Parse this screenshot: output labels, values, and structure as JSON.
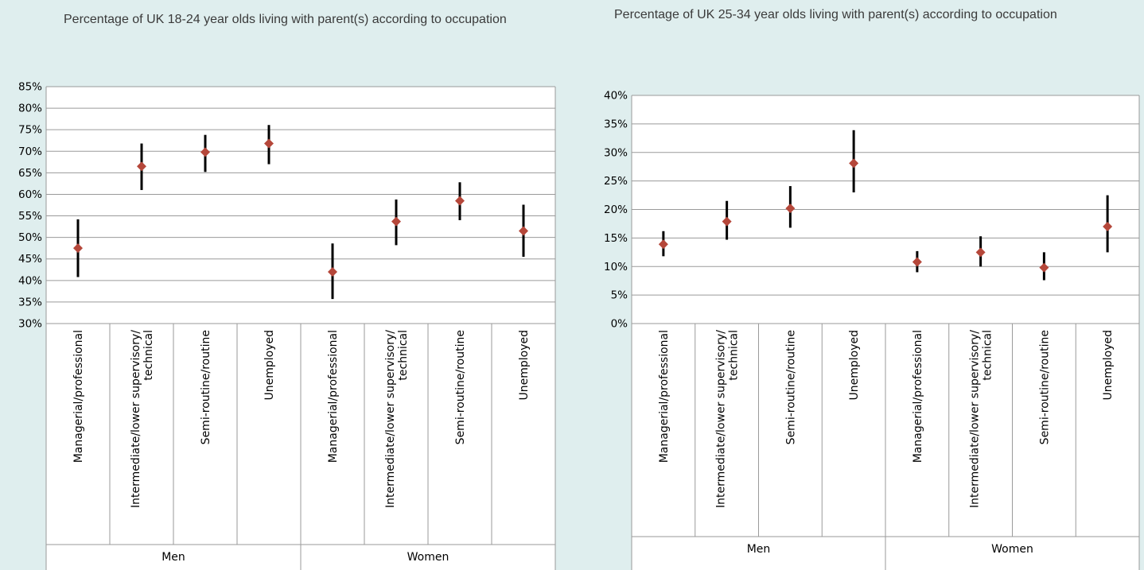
{
  "colors": {
    "background": "#dfeeee",
    "plot_background": "#ffffff",
    "marker": "#b5473a",
    "error_bar": "#000000",
    "grid": "#9a9a9a"
  },
  "chart_data": [
    {
      "type": "scatter",
      "title": "Percentage of UK 18-24 year olds living with parent(s) according to occupation",
      "categories": [
        "Managerial/professional",
        "Intermediate/lower supervisory/ technical",
        "Semi-routine/routine",
        "Unemployed",
        "Managerial/professional",
        "Intermediate/lower supervisory/ technical",
        "Semi-routine/routine",
        "Unemployed"
      ],
      "groups": [
        {
          "name": "Men",
          "span": [
            0,
            3
          ]
        },
        {
          "name": "Women",
          "span": [
            4,
            7
          ]
        }
      ],
      "values": [
        47.5,
        66.5,
        69.8,
        71.8,
        42.0,
        53.7,
        58.5,
        51.5
      ],
      "error_low": [
        40.8,
        61.0,
        65.2,
        67.0,
        35.7,
        48.2,
        54.0,
        45.5
      ],
      "error_high": [
        54.2,
        71.8,
        73.8,
        76.1,
        48.6,
        58.8,
        62.8,
        57.6
      ],
      "ylim": [
        30,
        85
      ],
      "yticks": [
        "30%",
        "35%",
        "40%",
        "45%",
        "50%",
        "55%",
        "60%",
        "65%",
        "70%",
        "75%",
        "80%",
        "85%"
      ],
      "grid": true,
      "legend": "none"
    },
    {
      "type": "scatter",
      "title": "Percentage of UK 25-34 year olds living with parent(s) according to occupation",
      "categories": [
        "Managerial/professional",
        "Intermediate/lower supervisory/ technical",
        "Semi-routine/routine",
        "Unemployed",
        "Managerial/professional",
        "Intermediate/lower supervisory/ technical",
        "Semi-routine/routine",
        "Unemployed"
      ],
      "groups": [
        {
          "name": "Men",
          "span": [
            0,
            3
          ]
        },
        {
          "name": "Women",
          "span": [
            4,
            7
          ]
        }
      ],
      "values": [
        13.9,
        17.9,
        20.2,
        28.1,
        10.8,
        12.5,
        9.8,
        17.0
      ],
      "error_low": [
        11.8,
        14.7,
        16.8,
        23.0,
        9.0,
        10.0,
        7.6,
        12.5
      ],
      "error_high": [
        16.2,
        21.5,
        24.1,
        33.9,
        12.7,
        15.3,
        12.5,
        22.5
      ],
      "ylim": [
        0,
        40
      ],
      "yticks": [
        "0%",
        "5%",
        "10%",
        "15%",
        "20%",
        "25%",
        "30%",
        "35%",
        "40%"
      ],
      "grid": true,
      "legend": "none"
    }
  ]
}
